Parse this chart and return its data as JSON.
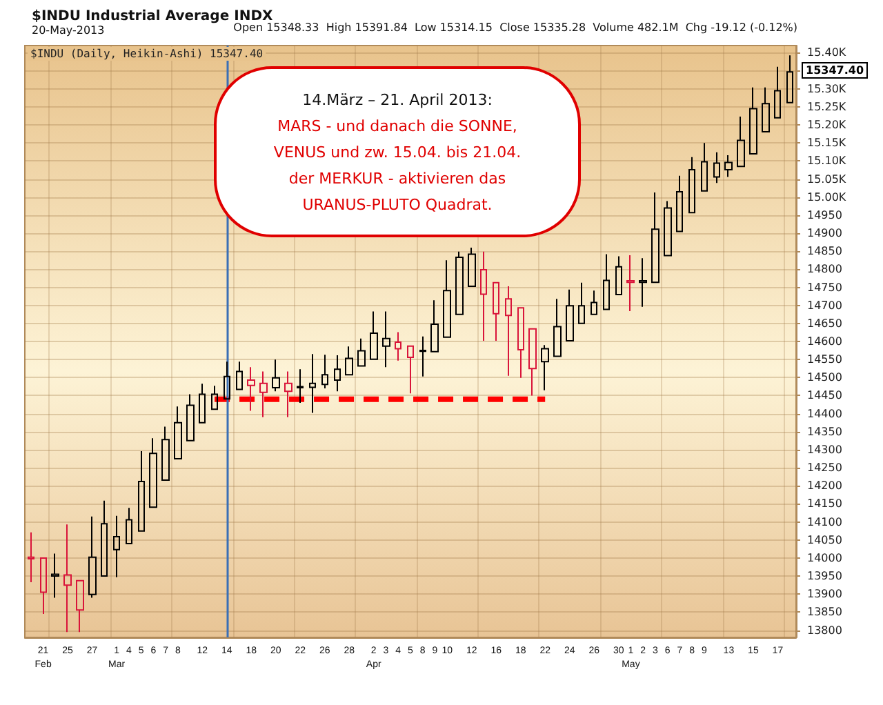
{
  "chart_data": {
    "type": "candlestick",
    "title": "$INDU Industrial Average INDX",
    "subtitle": "20-May-2013",
    "categories": [
      null,
      "21\nFeb",
      null,
      "25",
      null,
      "27",
      null,
      "1\nMar",
      "4",
      "5",
      "6",
      "7",
      "8",
      null,
      "12",
      null,
      "14",
      null,
      "18",
      null,
      "20",
      null,
      "22",
      null,
      "26",
      null,
      "28",
      null,
      "2\nApr",
      "3",
      "4",
      "5",
      "8",
      "9",
      "10",
      null,
      "12",
      null,
      "16",
      null,
      "18",
      null,
      "22",
      null,
      "24",
      null,
      "26",
      null,
      "30",
      "1\nMay",
      "2",
      "3",
      "6",
      "7",
      "8",
      "9",
      null,
      "13",
      null,
      "15",
      null,
      "17",
      null
    ],
    "ohlc": [
      [
        14002,
        14071,
        13933,
        13998
      ],
      [
        14000,
        14000,
        13845,
        13905
      ],
      [
        13950,
        14012,
        13890,
        13955
      ],
      [
        13953,
        14093,
        13795,
        13925
      ],
      [
        13937,
        13937,
        13795,
        13856
      ],
      [
        13899,
        14115,
        13890,
        14002
      ],
      [
        13950,
        14159,
        13950,
        14095
      ],
      [
        14023,
        14117,
        13947,
        14059
      ],
      [
        14040,
        14139,
        14040,
        14106
      ],
      [
        14075,
        14296,
        14075,
        14212
      ],
      [
        14141,
        14332,
        14141,
        14290
      ],
      [
        14216,
        14364,
        14216,
        14328
      ],
      [
        14275,
        14420,
        14275,
        14375
      ],
      [
        14325,
        14454,
        14325,
        14423
      ],
      [
        14375,
        14483,
        14375,
        14454
      ],
      [
        14412,
        14477,
        14412,
        14454
      ],
      [
        14441,
        14544,
        14441,
        14503
      ],
      [
        14467,
        14544,
        14467,
        14517
      ],
      [
        14493,
        14529,
        14408,
        14478
      ],
      [
        14484,
        14517,
        14390,
        14459
      ],
      [
        14472,
        14550,
        14462,
        14499
      ],
      [
        14484,
        14517,
        14390,
        14462
      ],
      [
        14472,
        14523,
        14430,
        14475
      ],
      [
        14473,
        14565,
        14402,
        14484
      ],
      [
        14481,
        14563,
        14470,
        14508
      ],
      [
        14493,
        14562,
        14462,
        14523
      ],
      [
        14508,
        14586,
        14508,
        14553
      ],
      [
        14532,
        14608,
        14532,
        14574
      ],
      [
        14551,
        14683,
        14551,
        14623
      ],
      [
        14587,
        14683,
        14529,
        14608
      ],
      [
        14598,
        14626,
        14547,
        14580
      ],
      [
        14587,
        14587,
        14456,
        14556
      ],
      [
        14573,
        14614,
        14503,
        14575
      ],
      [
        14572,
        14714,
        14572,
        14648
      ],
      [
        14612,
        14825,
        14612,
        14741
      ],
      [
        14675,
        14849,
        14675,
        14833
      ],
      [
        14753,
        14860,
        14753,
        14842
      ],
      [
        14799,
        14849,
        14602,
        14731
      ],
      [
        14763,
        14763,
        14602,
        14677
      ],
      [
        14718,
        14753,
        14505,
        14672
      ],
      [
        14693,
        14693,
        14499,
        14577
      ],
      [
        14635,
        14635,
        14450,
        14525
      ],
      [
        14544,
        14590,
        14465,
        14580
      ],
      [
        14559,
        14718,
        14559,
        14641
      ],
      [
        14602,
        14744,
        14602,
        14699
      ],
      [
        14650,
        14763,
        14650,
        14699
      ],
      [
        14675,
        14741,
        14675,
        14708
      ],
      [
        14689,
        14842,
        14689,
        14769
      ],
      [
        14730,
        14836,
        14730,
        14807
      ],
      [
        14768,
        14839,
        14684,
        14764
      ],
      [
        14764,
        14831,
        14696,
        14768
      ],
      [
        14764,
        15013,
        14764,
        14911
      ],
      [
        14838,
        14989,
        14838,
        14970
      ],
      [
        14905,
        15059,
        14905,
        15015
      ],
      [
        14957,
        15111,
        14957,
        15076
      ],
      [
        15017,
        15150,
        15017,
        15098
      ],
      [
        15056,
        15124,
        15039,
        15094
      ],
      [
        15076,
        15116,
        15056,
        15096
      ],
      [
        15085,
        15223,
        15085,
        15157
      ],
      [
        15120,
        15304,
        15120,
        15245
      ],
      [
        15181,
        15304,
        15181,
        15259
      ],
      [
        15220,
        15361,
        15220,
        15295
      ],
      [
        15262,
        15393,
        15262,
        15347
      ]
    ],
    "colors": [
      "#d9143a",
      "#d9143a",
      "#000000",
      "#d9143a",
      "#d9143a",
      "#000000",
      "#000000",
      "#000000",
      "#000000",
      "#000000",
      "#000000",
      "#000000",
      "#000000",
      "#000000",
      "#000000",
      "#000000",
      "#000000",
      "#000000",
      "#d9143a",
      "#d9143a",
      "#000000",
      "#d9143a",
      "#000000",
      "#000000",
      "#000000",
      "#000000",
      "#000000",
      "#000000",
      "#000000",
      "#000000",
      "#d9143a",
      "#d9143a",
      "#000000",
      "#000000",
      "#000000",
      "#000000",
      "#000000",
      "#d9143a",
      "#d9143a",
      "#d9143a",
      "#d9143a",
      "#d9143a",
      "#000000",
      "#000000",
      "#000000",
      "#000000",
      "#000000",
      "#000000",
      "#000000",
      "#d9143a",
      "#000000",
      "#000000",
      "#000000",
      "#000000",
      "#000000",
      "#000000",
      "#000000",
      "#000000",
      "#000000",
      "#000000",
      "#000000",
      "#000000",
      "#000000"
    ],
    "series": [
      {
        "type": "line",
        "color": "#ff0000",
        "line_style": "dashed",
        "marker": "none",
        "values": [
          null,
          null,
          null,
          null,
          null,
          null,
          null,
          null,
          null,
          null,
          null,
          null,
          null,
          null,
          null,
          14440,
          14440,
          14440,
          14440,
          14440,
          14440,
          14440,
          14440,
          14440,
          14440,
          14440,
          14440,
          14440,
          14440,
          14440,
          14440,
          14440,
          14440,
          14440,
          14440,
          14440,
          14440,
          14440,
          14440,
          14440,
          14440,
          14440,
          14440,
          null,
          null,
          null,
          null,
          null,
          null,
          null,
          null,
          null,
          null,
          null,
          null,
          null,
          null,
          null,
          null,
          null,
          null,
          null,
          null
        ]
      }
    ],
    "ref_lines": [
      {
        "axis": "x",
        "value": "14",
        "color": "#3a6fb5"
      }
    ],
    "ylim": [
      13780,
      15420
    ],
    "yticks": [
      13800,
      13850,
      13900,
      13950,
      14000,
      14050,
      14100,
      14150,
      14200,
      14250,
      14300,
      14350,
      14400,
      14450,
      14500,
      14550,
      14600,
      14650,
      14700,
      14750,
      14800,
      14850,
      14900,
      14950,
      {
        "value": 15000,
        "label": "15.00K"
      },
      {
        "value": 15050,
        "label": "15.05K"
      },
      {
        "value": 15100,
        "label": "15.10K"
      },
      {
        "value": 15150,
        "label": "15.15K"
      },
      {
        "value": 15200,
        "label": "15.20K"
      },
      {
        "value": 15250,
        "label": "15.25K"
      },
      {
        "value": 15300,
        "label": "15.30K"
      },
      {
        "value": 15350,
        "label": null
      },
      {
        "value": 15400,
        "label": "15.40K"
      }
    ],
    "grid": true,
    "annotations": [
      "Open 15348.33  High 15391.84  Low 15314.15  Close 15335.28  Volume 482.1M  Chg -19.12 (-0.12%)",
      "$INDU (Daily, Heikin-Ashi) 15347.40",
      "14.März – 21. April 2013:",
      "MARS - und danach die SONNE,\nVENUS und zw. 15.04. bis 21.04.\nder MERKUR - aktivieren das\nURANUS-PLUTO Quadrat.",
      "15347.40"
    ]
  }
}
